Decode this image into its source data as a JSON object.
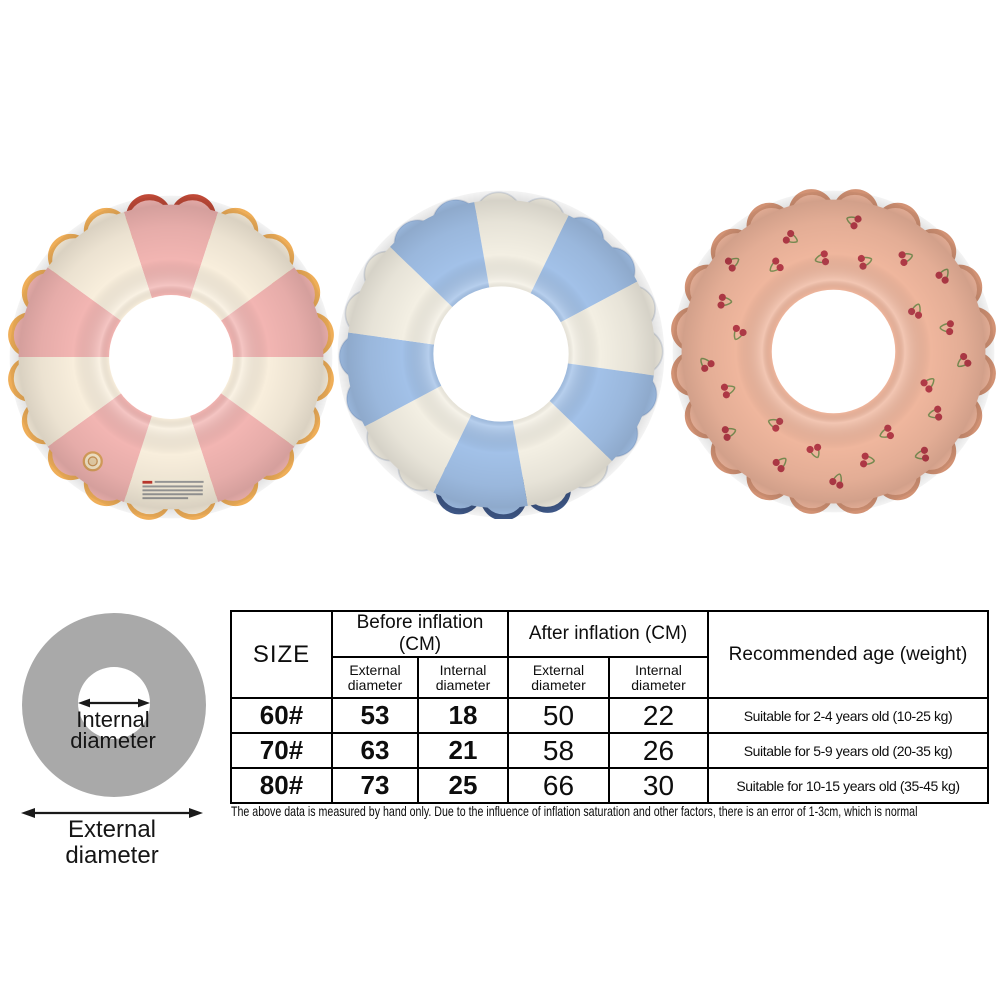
{
  "page": {
    "background": "#ffffff"
  },
  "products": [
    {
      "name": "pink and cream striped swim ring",
      "pattern": "striped",
      "colors": {
        "primary": "#F2B5B2",
        "secondary": "#F8EEDC",
        "trim": "#EFAE58",
        "trim_top": "#BF4937"
      },
      "details": {
        "has_warning_label": true,
        "has_valve": true
      }
    },
    {
      "name": "blue and white striped swim ring",
      "pattern": "striped",
      "colors": {
        "primary": "#F3EFE3",
        "secondary": "#A2C1E8",
        "trim_bottom": "#3D5685"
      }
    },
    {
      "name": "peach swim ring with cherry print",
      "pattern": "cherry-print",
      "colors": {
        "base": "#EFB69D",
        "trim": "#D29274",
        "cherry": "#B23A47",
        "stem": "#7A8D52"
      }
    }
  ],
  "diagram": {
    "donut_color": "#A9A9A9",
    "internal_label": "Internal diameter",
    "external_label": "External diameter"
  },
  "size_table": {
    "col_size": "SIZE",
    "group_before": "Before inflation (CM)",
    "group_after": "After inflation (CM)",
    "sub_external": "External diameter",
    "sub_internal": "Internal diameter",
    "col_recommended": "Recommended age (weight)",
    "rows": [
      {
        "size": "60#",
        "before_external": "53",
        "before_internal": "18",
        "after_external": "50",
        "after_internal": "22",
        "recommended": "Suitable for 2-4 years old (10-25 kg)"
      },
      {
        "size": "70#",
        "before_external": "63",
        "before_internal": "21",
        "after_external": "58",
        "after_internal": "26",
        "recommended": "Suitable for 5-9 years old (20-35 kg)"
      },
      {
        "size": "80#",
        "before_external": "73",
        "before_internal": "25",
        "after_external": "66",
        "after_internal": "30",
        "recommended": "Suitable for 10-15 years old (35-45 kg)"
      }
    ]
  },
  "footnote": "The above data is measured by hand only. Due to the influence of inflation saturation and other factors, there is an error of 1-3cm, which is normal"
}
